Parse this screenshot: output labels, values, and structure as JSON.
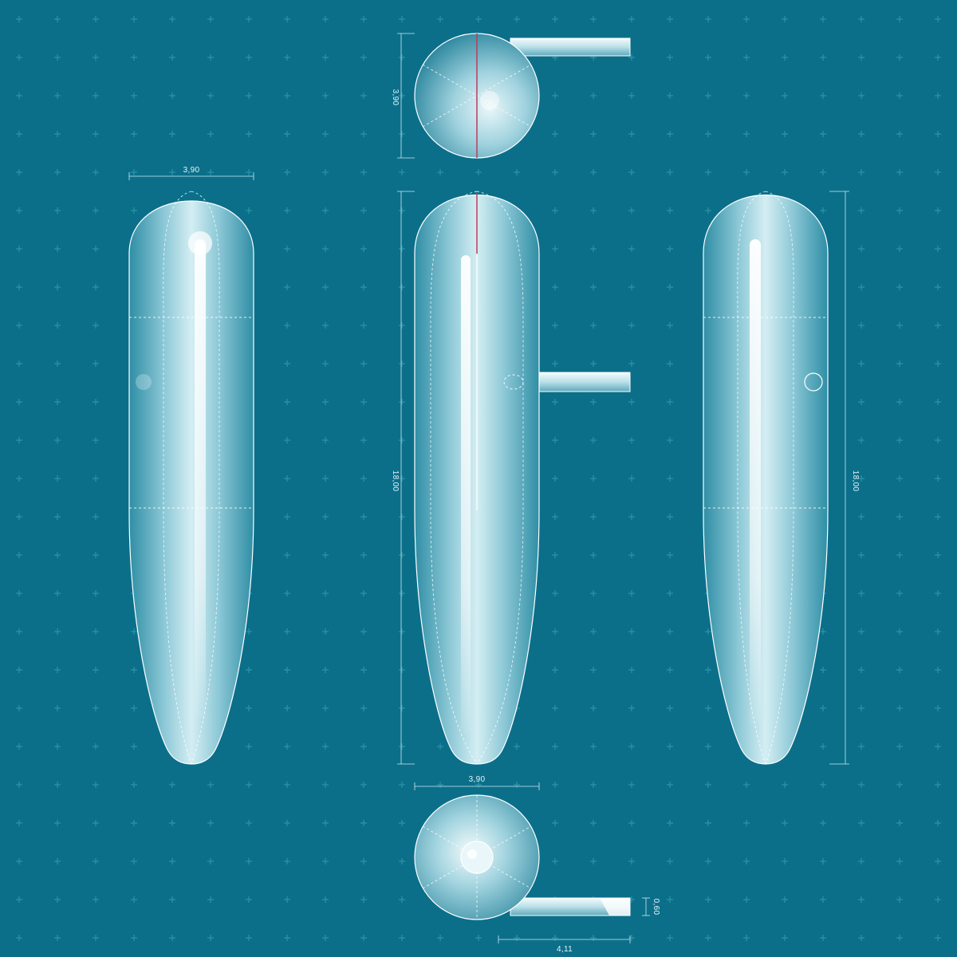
{
  "colors": {
    "background": "#0b6f8a",
    "grid_marker": "#2a93a8",
    "seam": "#c03a5a",
    "outline": "#ffffff"
  },
  "dimensions": {
    "top_view_height": "3,90",
    "left_view_width": "3,90",
    "front_view_length": "18,00",
    "right_view_length": "18,00",
    "bottom_view_width": "3,90",
    "cord_length": "4,11",
    "cord_diameter": "0,60"
  },
  "views": [
    "top-view",
    "left-view",
    "front-view",
    "right-view",
    "bottom-view"
  ]
}
